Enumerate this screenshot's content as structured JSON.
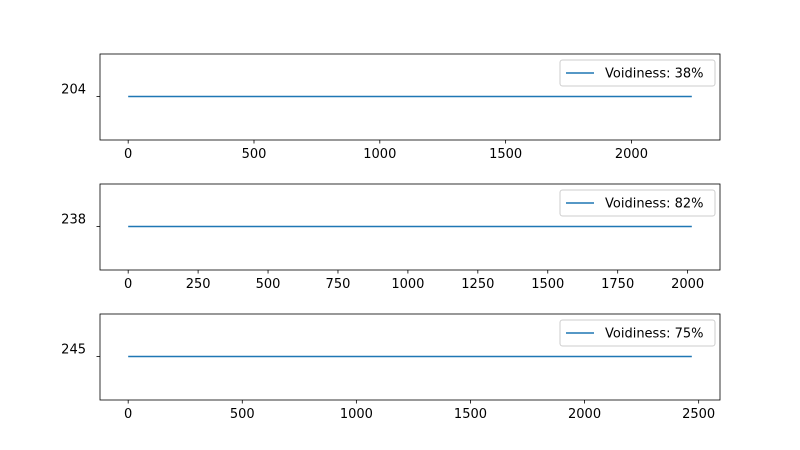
{
  "chart_data": [
    {
      "type": "line",
      "ytick_label": "204",
      "xlim": [
        -112,
        2352
      ],
      "xticks": [
        0,
        500,
        1000,
        1500,
        2000
      ],
      "series": [
        {
          "name": "Voidiness: 38%",
          "color": "#1f77b4",
          "x": [
            0,
            2240
          ],
          "y": [
            204,
            204
          ]
        }
      ]
    },
    {
      "type": "line",
      "ytick_label": "238",
      "xlim": [
        -100.75,
        2115.75
      ],
      "xticks": [
        0,
        250,
        500,
        750,
        1000,
        1250,
        1500,
        1750,
        2000
      ],
      "series": [
        {
          "name": "Voidiness: 82%",
          "color": "#1f77b4",
          "x": [
            0,
            2015
          ],
          "y": [
            238,
            238
          ]
        }
      ]
    },
    {
      "type": "line",
      "ytick_label": "245",
      "xlim": [
        -123.5,
        2593.5
      ],
      "xticks": [
        0,
        500,
        1000,
        1500,
        2000,
        2500
      ],
      "series": [
        {
          "name": "Voidiness: 75%",
          "color": "#1f77b4",
          "x": [
            0,
            2470
          ],
          "y": [
            245,
            245
          ]
        }
      ]
    }
  ]
}
